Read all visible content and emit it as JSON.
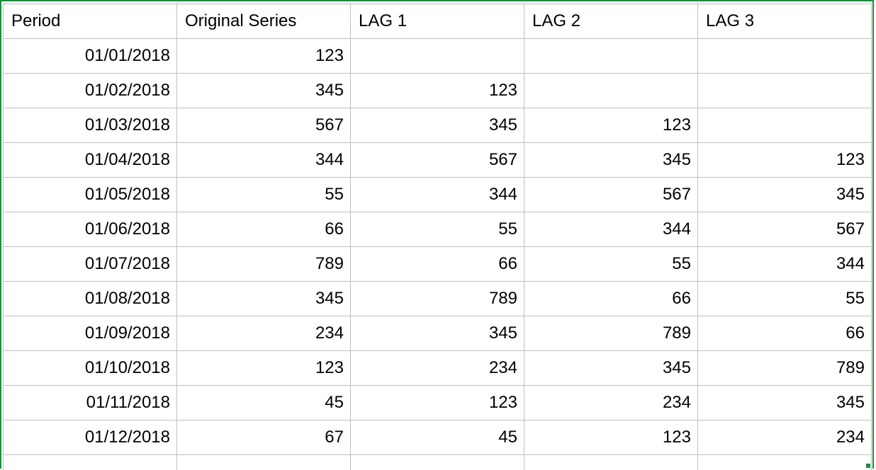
{
  "sheet": {
    "headers": [
      "Period",
      "Original Series",
      "LAG 1",
      "LAG 2",
      "LAG 3"
    ],
    "rows": [
      [
        "01/01/2018",
        "123",
        "",
        "",
        ""
      ],
      [
        "01/02/2018",
        "345",
        "123",
        "",
        ""
      ],
      [
        "01/03/2018",
        "567",
        "345",
        "123",
        ""
      ],
      [
        "01/04/2018",
        "344",
        "567",
        "345",
        "123"
      ],
      [
        "01/05/2018",
        "55",
        "344",
        "567",
        "345"
      ],
      [
        "01/06/2018",
        "66",
        "55",
        "344",
        "567"
      ],
      [
        "01/07/2018",
        "789",
        "66",
        "55",
        "344"
      ],
      [
        "01/08/2018",
        "345",
        "789",
        "66",
        "55"
      ],
      [
        "01/09/2018",
        "234",
        "345",
        "789",
        "66"
      ],
      [
        "01/10/2018",
        "123",
        "234",
        "345",
        "789"
      ],
      [
        "01/11/2018",
        "45",
        "123",
        "234",
        "345"
      ],
      [
        "01/12/2018",
        "67",
        "45",
        "123",
        "234"
      ],
      [
        "",
        "",
        "",
        "",
        ""
      ]
    ],
    "selection_color": "#1e8a3e",
    "grid_color": "#bfbfbf"
  }
}
